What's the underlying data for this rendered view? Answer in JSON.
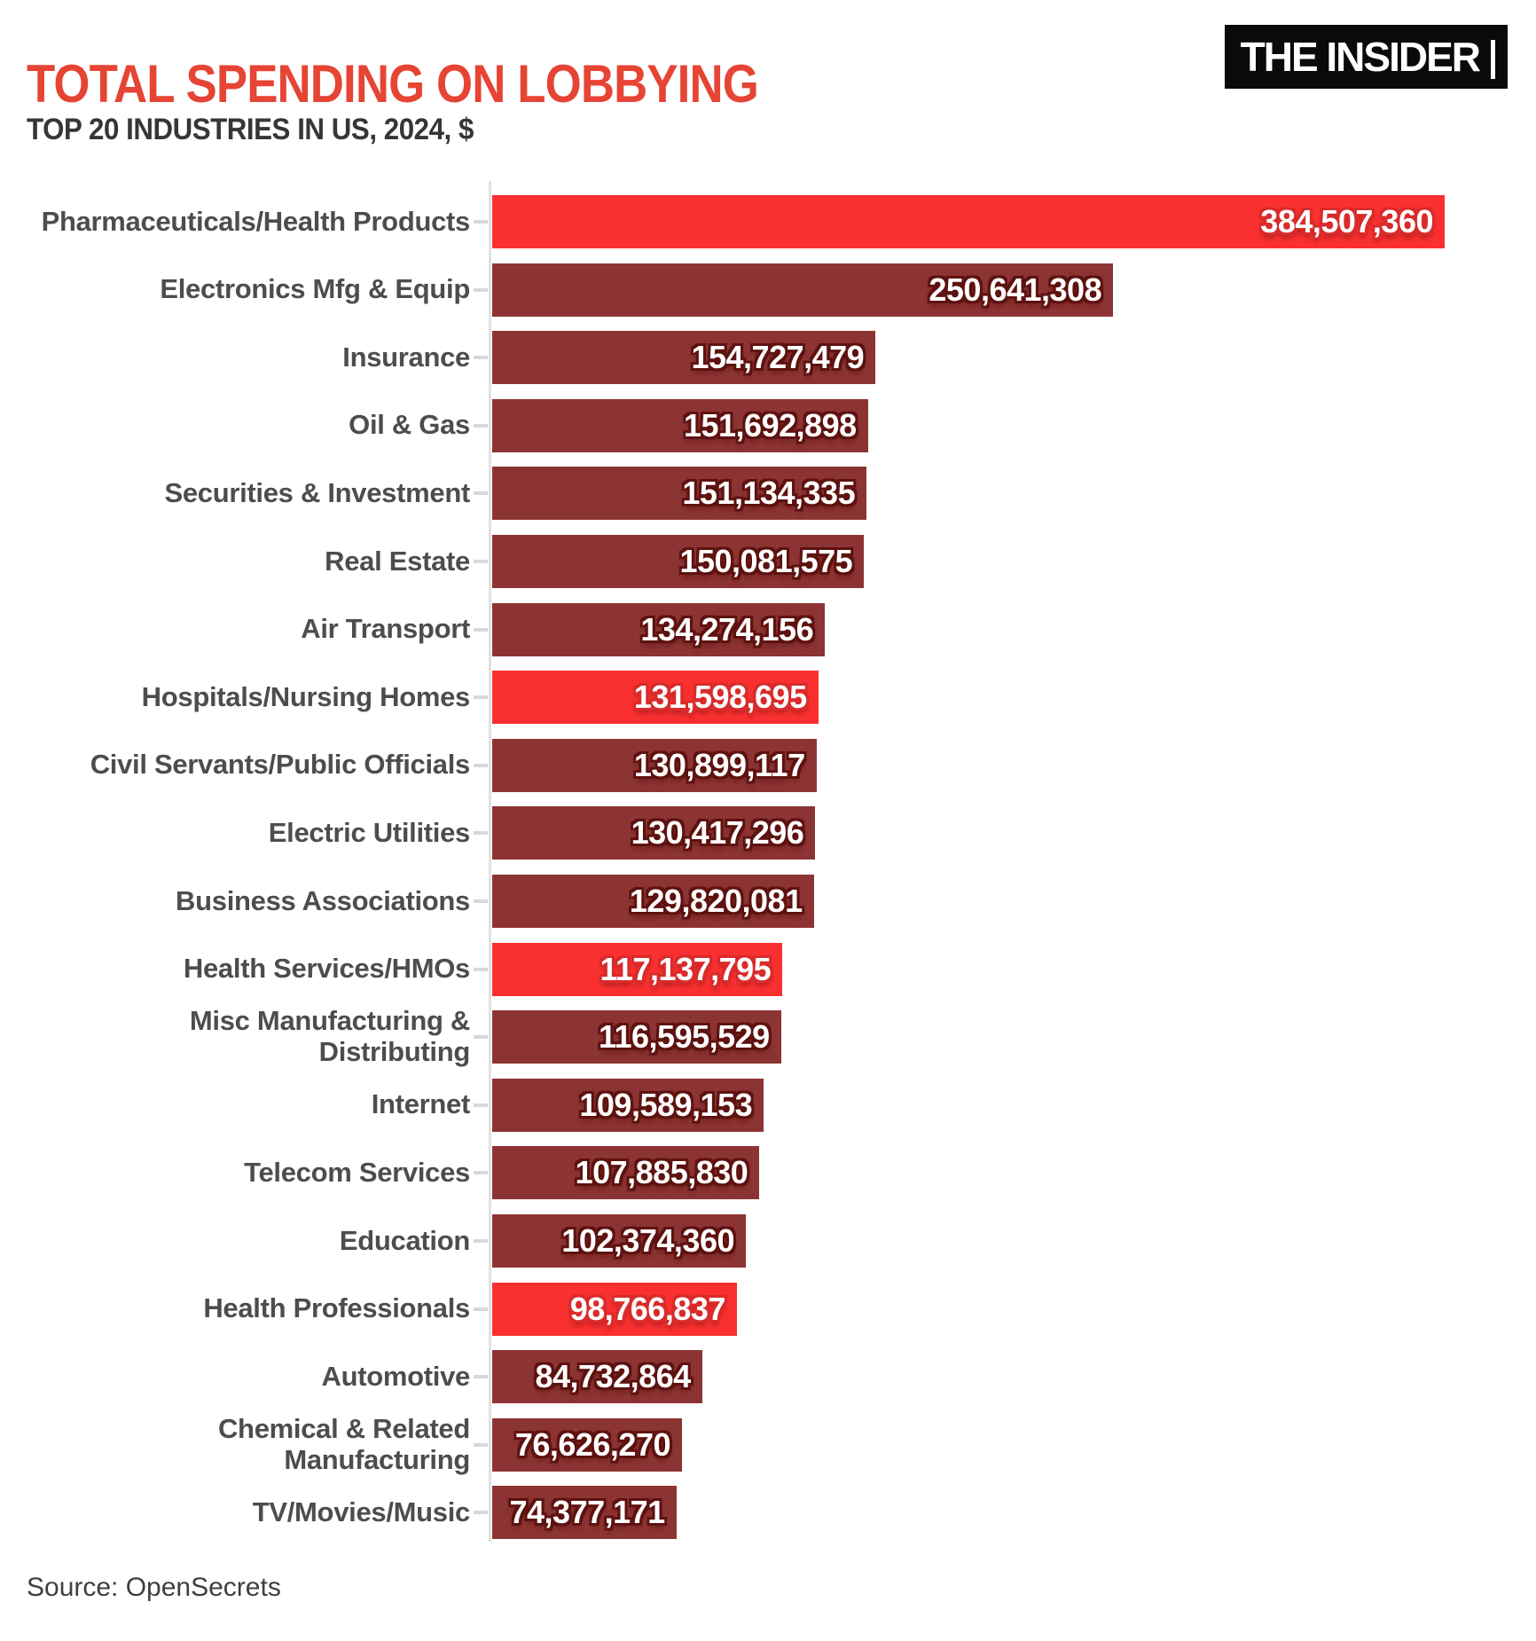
{
  "header": {
    "title": "TOTAL SPENDING ON LOBBYING",
    "subtitle": "TOP 20 INDUSTRIES IN US, 2024, $",
    "logo_text": "THE INSIDER"
  },
  "footer": {
    "source": "Source: OpenSecrets"
  },
  "colors": {
    "title": "#E64434",
    "subtitle": "#363636",
    "label": "#4D4D4D",
    "source": "#3F3F3F",
    "bar": "#8C3433",
    "bar_highlight": "#FA3030",
    "value_text": "#FFFFFF",
    "outline": "#5E1210",
    "outline_highlight": "#D92B2B",
    "tick": "#D8D8D8",
    "axis": "#E2E2E2",
    "logo_bg": "#0A0A0A",
    "logo_text": "#FFFFFF"
  },
  "chart_data": {
    "type": "bar",
    "orientation": "horizontal",
    "title": "TOTAL SPENDING ON LOBBYING",
    "subtitle": "TOP 20 INDUSTRIES IN US, 2024, $",
    "source": "Source: OpenSecrets",
    "xlim": [
      0,
      384507360
    ],
    "grid": false,
    "legend": false,
    "highlight_note": "health-related industries shown in bright red",
    "categories": [
      "Pharmaceuticals/Health Products",
      "Electronics Mfg & Equip",
      "Insurance",
      "Oil & Gas",
      "Securities & Investment",
      "Real Estate",
      "Air Transport",
      "Hospitals/Nursing Homes",
      "Civil Servants/Public Officials",
      "Electric Utilities",
      "Business Associations",
      "Health Services/HMOs",
      "Misc Manufacturing & Distributing",
      "Internet",
      "Telecom Services",
      "Education",
      "Health Professionals",
      "Automotive",
      "Chemical & Related Manufacturing",
      "TV/Movies/Music"
    ],
    "values": [
      384507360,
      250641308,
      154727479,
      151692898,
      151134335,
      150081575,
      134274156,
      131598695,
      130899117,
      130417296,
      129820081,
      117137795,
      116595529,
      109589153,
      107885830,
      102374360,
      98766837,
      84732864,
      76626270,
      74377171
    ],
    "value_labels": [
      "384,507,360",
      "250,641,308",
      "154,727,479",
      "151,692,898",
      "151,134,335",
      "150,081,575",
      "134,274,156",
      "131,598,695",
      "130,899,117",
      "130,417,296",
      "129,820,081",
      "117,137,795",
      "116,595,529",
      "109,589,153",
      "107,885,830",
      "102,374,360",
      "98,766,837",
      "84,732,864",
      "76,626,270",
      "74,377,171"
    ],
    "highlight": [
      true,
      false,
      false,
      false,
      false,
      false,
      false,
      true,
      false,
      false,
      false,
      true,
      false,
      false,
      false,
      false,
      true,
      false,
      false,
      false
    ],
    "wrap": {
      "12": "Misc Manufacturing &\nDistributing",
      "18": "Chemical & Related\nManufacturing"
    }
  }
}
